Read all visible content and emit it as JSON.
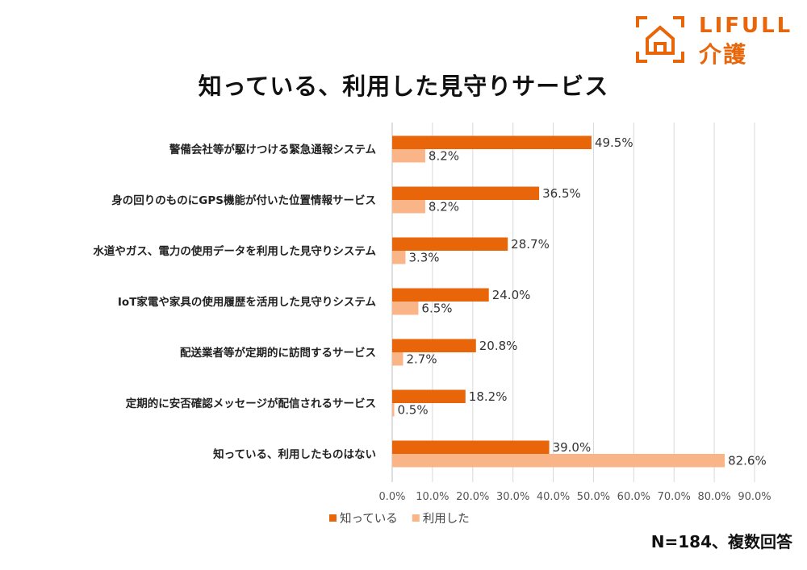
{
  "logo": {
    "brand": "LIFULL",
    "sub": "介護"
  },
  "chart_data": {
    "type": "bar",
    "orientation": "horizontal",
    "title": "知っている、利用した見守りサービス",
    "categories": [
      "警備会社等が駆けつける緊急通報システム",
      "身の回りのものにGPS機能が付いた位置情報サービス",
      "水道やガス、電力の使用データを利用した見守りシステム",
      "IoT家電や家具の使用履歴を活用した見守りシステム",
      "配送業者等が定期的に訪問するサービス",
      "定期的に安否確認メッセージが配信されるサービス",
      "知っている、利用したものはない"
    ],
    "series": [
      {
        "name": "知っている",
        "values": [
          49.5,
          36.5,
          28.7,
          24.0,
          20.8,
          18.2,
          39.0
        ]
      },
      {
        "name": "利用した",
        "values": [
          8.2,
          8.2,
          3.3,
          6.5,
          2.7,
          0.5,
          82.6
        ]
      }
    ],
    "value_labels": [
      [
        "49.5%",
        "36.5%",
        "28.7%",
        "24.0%",
        "20.8%",
        "18.2%",
        "39.0%"
      ],
      [
        "8.2%",
        "8.2%",
        "3.3%",
        "6.5%",
        "2.7%",
        "0.5%",
        "82.6%"
      ]
    ],
    "xlim": [
      0,
      90
    ],
    "xticks": [
      0,
      10,
      20,
      30,
      40,
      50,
      60,
      70,
      80,
      90
    ],
    "xtick_labels": [
      "0.0%",
      "10.0%",
      "20.0%",
      "30.0%",
      "40.0%",
      "50.0%",
      "60.0%",
      "70.0%",
      "80.0%",
      "90.0%"
    ],
    "grid": true,
    "legend_position": "bottom-left",
    "colors": [
      "#E8650A",
      "#F9B487"
    ],
    "note": "N=184、複数回答"
  }
}
